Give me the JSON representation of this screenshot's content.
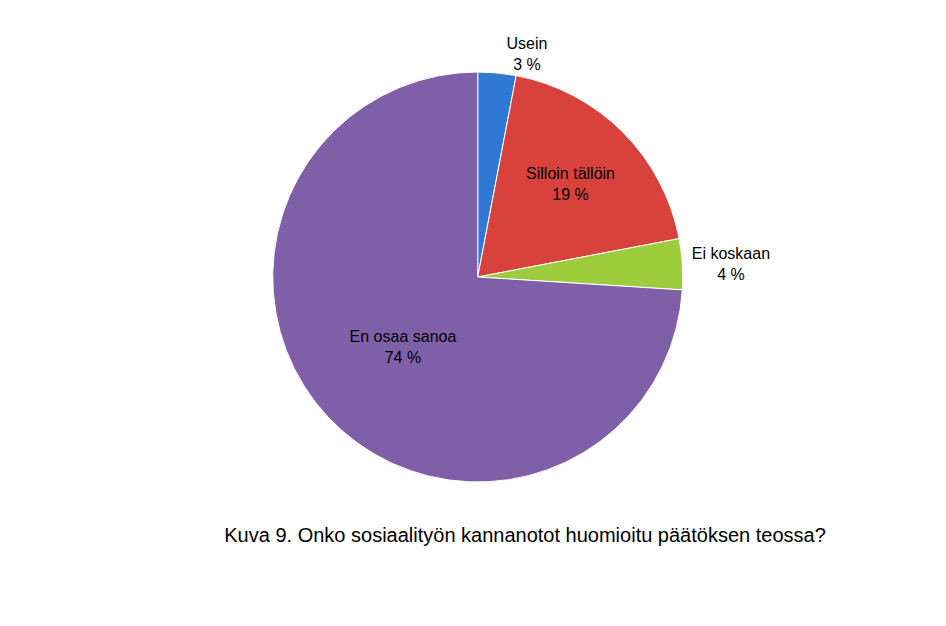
{
  "chart_data": {
    "type": "pie",
    "title": "Kuva 9. Onko sosiaalityön kannanotot huomioitu päätöksen teossa?",
    "categories": [
      "Usein",
      "Silloin tällöin",
      "Ei koskaan",
      "En osaa sanoa"
    ],
    "values": [
      3,
      19,
      4,
      74
    ],
    "value_labels": [
      "3 %",
      "19 %",
      "4 %",
      "74 %"
    ],
    "colors": [
      "#2f78d4",
      "#d9413c",
      "#9dcc3d",
      "#7f60a8"
    ],
    "data_labels": true,
    "legend": false
  }
}
